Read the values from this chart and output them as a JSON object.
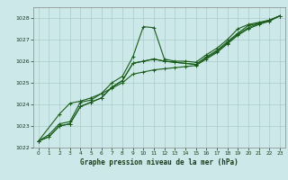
{
  "bg_color": "#cce8e8",
  "grid_color": "#aacccc",
  "line_color": "#1a5c1a",
  "title": "Graphe pression niveau de la mer (hPa)",
  "xlim": [
    -0.5,
    23.5
  ],
  "ylim": [
    1022,
    1028.5
  ],
  "yticks": [
    1022,
    1023,
    1024,
    1025,
    1026,
    1027,
    1028
  ],
  "xticks": [
    0,
    1,
    2,
    3,
    4,
    5,
    6,
    7,
    8,
    9,
    10,
    11,
    12,
    13,
    14,
    15,
    16,
    17,
    18,
    19,
    20,
    21,
    22,
    23
  ],
  "line1_x": [
    0,
    1,
    2,
    3,
    4,
    5,
    6,
    7,
    8,
    9,
    10,
    11,
    12,
    13,
    14,
    15,
    16,
    17,
    18,
    19,
    20,
    21,
    22,
    23
  ],
  "line1_y": [
    1022.3,
    1022.6,
    1023.1,
    1023.2,
    1024.1,
    1024.2,
    1024.5,
    1025.0,
    1025.3,
    1026.2,
    1027.6,
    1027.55,
    1026.1,
    1026.0,
    1026.0,
    1025.95,
    1026.3,
    1026.6,
    1027.0,
    1027.5,
    1027.7,
    1027.8,
    1027.9,
    1028.1
  ],
  "line2_x": [
    0,
    1,
    2,
    3,
    4,
    5,
    6,
    7,
    8,
    9,
    10,
    11,
    12,
    13,
    14,
    15,
    16,
    17,
    18,
    19,
    20,
    21,
    22,
    23
  ],
  "line2_y": [
    1022.3,
    1022.5,
    1023.0,
    1023.1,
    1023.9,
    1024.1,
    1024.3,
    1024.8,
    1025.1,
    1025.9,
    1026.0,
    1026.1,
    1026.0,
    1025.95,
    1025.9,
    1025.85,
    1026.2,
    1026.5,
    1026.9,
    1027.3,
    1027.65,
    1027.75,
    1027.9,
    1028.1
  ],
  "line3_x": [
    0,
    1,
    2,
    3,
    4,
    5,
    6,
    7,
    8,
    9,
    10,
    11,
    12,
    13,
    14,
    15,
    16,
    17,
    18,
    19,
    20,
    21,
    22,
    23
  ],
  "line3_y": [
    1022.3,
    1022.5,
    1023.0,
    1023.1,
    1023.9,
    1024.1,
    1024.3,
    1024.8,
    1025.1,
    1025.9,
    1026.0,
    1026.1,
    1026.0,
    1025.95,
    1025.9,
    1025.85,
    1026.15,
    1026.45,
    1026.85,
    1027.25,
    1027.55,
    1027.75,
    1027.88,
    1028.1
  ],
  "line4_x": [
    0,
    2,
    3,
    4,
    5,
    6,
    7,
    8,
    9,
    10,
    11,
    12,
    13,
    14,
    15,
    16,
    17,
    18,
    19,
    20,
    21,
    22,
    23
  ],
  "line4_y": [
    1022.3,
    1023.55,
    1024.05,
    1024.15,
    1024.3,
    1024.5,
    1024.75,
    1025.0,
    1025.4,
    1025.5,
    1025.6,
    1025.65,
    1025.7,
    1025.75,
    1025.8,
    1026.1,
    1026.4,
    1026.8,
    1027.2,
    1027.5,
    1027.7,
    1027.85,
    1028.1
  ]
}
